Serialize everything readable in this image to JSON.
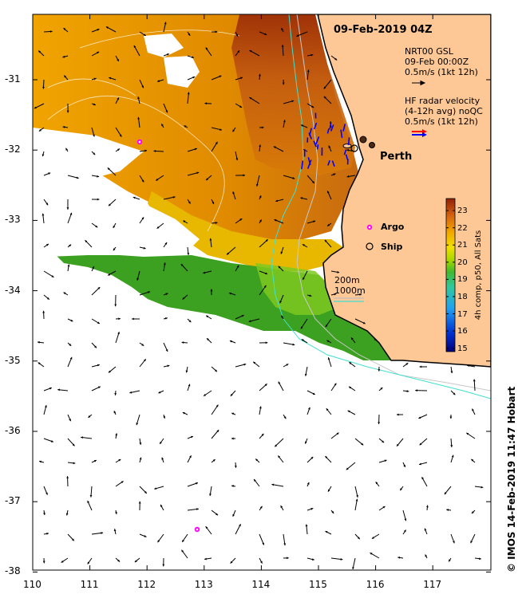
{
  "title": "09-Feb-2019 04Z",
  "legend": {
    "model_lines": [
      "NRT00 GSL",
      "09-Feb 00:00Z",
      "0.5m/s (1kt 12h)"
    ],
    "radar_lines": [
      "HF radar velocity",
      "(4-12h avg) noQC",
      "0.5m/s (1kt 12h)"
    ],
    "argo_label": "Argo",
    "ship_label": "Ship",
    "isobaths": [
      "200m",
      "1000m"
    ],
    "colors": {
      "model_arrow": "#000000",
      "radar_red": "#ff0000",
      "radar_blue": "#0000ff",
      "argo": "#ff00ff",
      "iso200": "#bfbfbf",
      "iso1000": "#40e0d0",
      "land": "#fdc896"
    }
  },
  "place_label": "Perth",
  "colorbar": {
    "ticks": [
      "15",
      "16",
      "17",
      "18",
      "19",
      "20",
      "21",
      "22",
      "23"
    ],
    "label": "4h comp, p50, All Sats",
    "min": 14.8,
    "max": 23.7
  },
  "axes": {
    "x_ticks": [
      "110",
      "111",
      "112",
      "113",
      "114",
      "115",
      "116",
      "117"
    ],
    "y_ticks": [
      "-31",
      "-32",
      "-33",
      "-34",
      "-35",
      "-36",
      "-37",
      "-38"
    ]
  },
  "credit": "© IMOS 14-Feb-2019 11:47 Hobart",
  "argo_floats": [
    {
      "lon": 111.85,
      "lat": -31.9
    },
    {
      "lon": 112.85,
      "lat": -37.4
    }
  ],
  "ships": [
    {
      "lon": 115.55,
      "lat": -31.98
    }
  ]
}
